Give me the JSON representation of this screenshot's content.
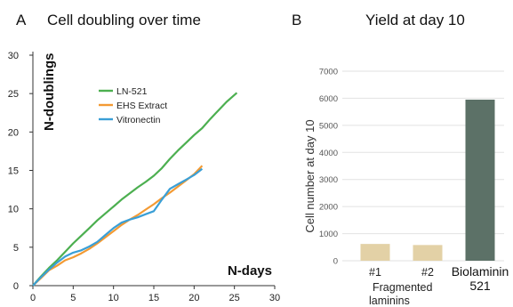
{
  "panels": {
    "a": {
      "letter": "A",
      "title": "Cell doubling over time"
    },
    "b": {
      "letter": "B",
      "title": "Yield at day 10"
    }
  },
  "chart_data": [
    {
      "type": "line",
      "title": "Cell doubling over time",
      "xlabel": "N-days",
      "ylabel": "N-doublings",
      "xlim": [
        0,
        30
      ],
      "ylim": [
        0,
        30
      ],
      "x_ticks": [
        0,
        5,
        10,
        15,
        20,
        25,
        30
      ],
      "y_ticks": [
        0,
        5,
        10,
        15,
        20,
        25,
        30
      ],
      "grid": false,
      "legend_position": "top-right",
      "series": [
        {
          "name": "LN-521",
          "color": "#4caf50",
          "x": [
            0,
            1,
            2,
            3,
            4,
            5,
            6,
            7,
            8,
            9,
            10,
            11,
            12,
            13,
            14,
            15,
            16,
            17,
            18,
            19,
            20,
            21,
            22,
            23,
            24,
            25.3
          ],
          "y": [
            0,
            1.2,
            2.3,
            3.3,
            4.4,
            5.5,
            6.5,
            7.5,
            8.5,
            9.4,
            10.3,
            11.2,
            12,
            12.8,
            13.5,
            14.3,
            15.3,
            16.5,
            17.6,
            18.6,
            19.6,
            20.5,
            21.7,
            22.8,
            23.9,
            25.1
          ]
        },
        {
          "name": "EHS Extract",
          "color": "#f39a33",
          "x": [
            0,
            1,
            2,
            3,
            4,
            5,
            6,
            7,
            8,
            9,
            10,
            11,
            12,
            13,
            14,
            15,
            16,
            17,
            18,
            19,
            20,
            21
          ],
          "y": [
            0,
            1,
            2,
            2.6,
            3.3,
            3.7,
            4.2,
            4.8,
            5.5,
            6.3,
            7.1,
            7.9,
            8.6,
            9.2,
            9.9,
            10.6,
            11.4,
            12.1,
            12.9,
            13.7,
            14.5,
            15.6
          ]
        },
        {
          "name": "Vitronectin",
          "color": "#3a9fd6",
          "x": [
            0,
            1,
            2,
            3,
            4,
            5,
            6,
            7,
            8,
            9,
            10,
            11,
            12,
            13,
            14,
            15,
            16,
            17,
            18,
            19,
            20,
            21
          ],
          "y": [
            0,
            1.1,
            2.1,
            3,
            3.8,
            4.3,
            4.6,
            5.1,
            5.7,
            6.6,
            7.5,
            8.2,
            8.6,
            8.9,
            9.3,
            9.7,
            11.2,
            12.6,
            13.2,
            13.8,
            14.4,
            15.2
          ]
        }
      ]
    },
    {
      "type": "bar",
      "title": "Yield at day 10",
      "xlabel": "",
      "ylabel": "Cell number at day 10",
      "ylim": [
        0,
        7000
      ],
      "y_ticks": [
        0,
        1000,
        2000,
        3000,
        4000,
        5000,
        6000,
        7000
      ],
      "grid": true,
      "categories": [
        "#1",
        "#2",
        "Biolaminin 521"
      ],
      "group_label": "Fragmented laminins",
      "values": [
        620,
        580,
        5950
      ],
      "colors": [
        "#e3d1a6",
        "#e3d1a6",
        "#5c7167"
      ]
    }
  ]
}
